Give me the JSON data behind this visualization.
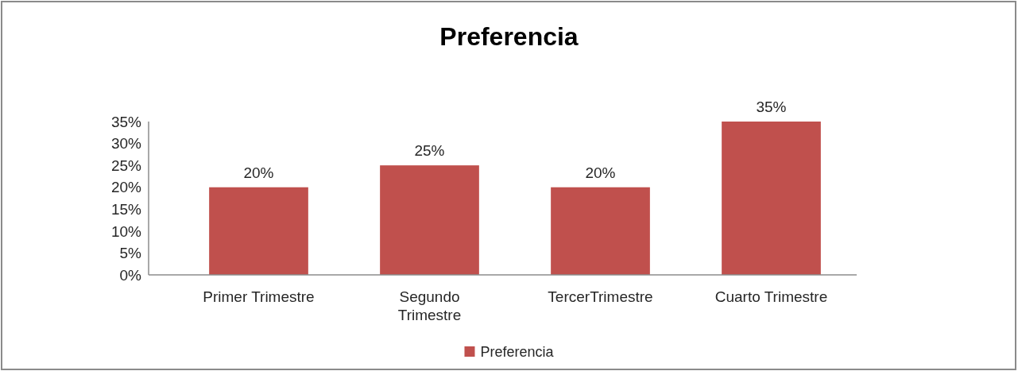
{
  "chart_data": {
    "type": "bar",
    "title": "Preferencia",
    "categories": [
      "Primer Trimestre",
      "Segundo Trimestre",
      "TercerTrimestre",
      "Cuarto Trimestre"
    ],
    "series": [
      {
        "name": "Preferencia",
        "color": "#c0504d",
        "values": [
          20,
          25,
          20,
          35
        ],
        "value_labels": [
          "20%",
          "25%",
          "20%",
          "35%"
        ]
      }
    ],
    "ylim": [
      0,
      35
    ],
    "yticks": [
      {
        "value": 0,
        "label": "0%"
      },
      {
        "value": 5,
        "label": "5%"
      },
      {
        "value": 10,
        "label": "10%"
      },
      {
        "value": 15,
        "label": "15%"
      },
      {
        "value": 20,
        "label": "20%"
      },
      {
        "value": 25,
        "label": "25%"
      },
      {
        "value": 30,
        "label": "30%"
      },
      {
        "value": 35,
        "label": "35%"
      }
    ],
    "legend": "bottom"
  }
}
